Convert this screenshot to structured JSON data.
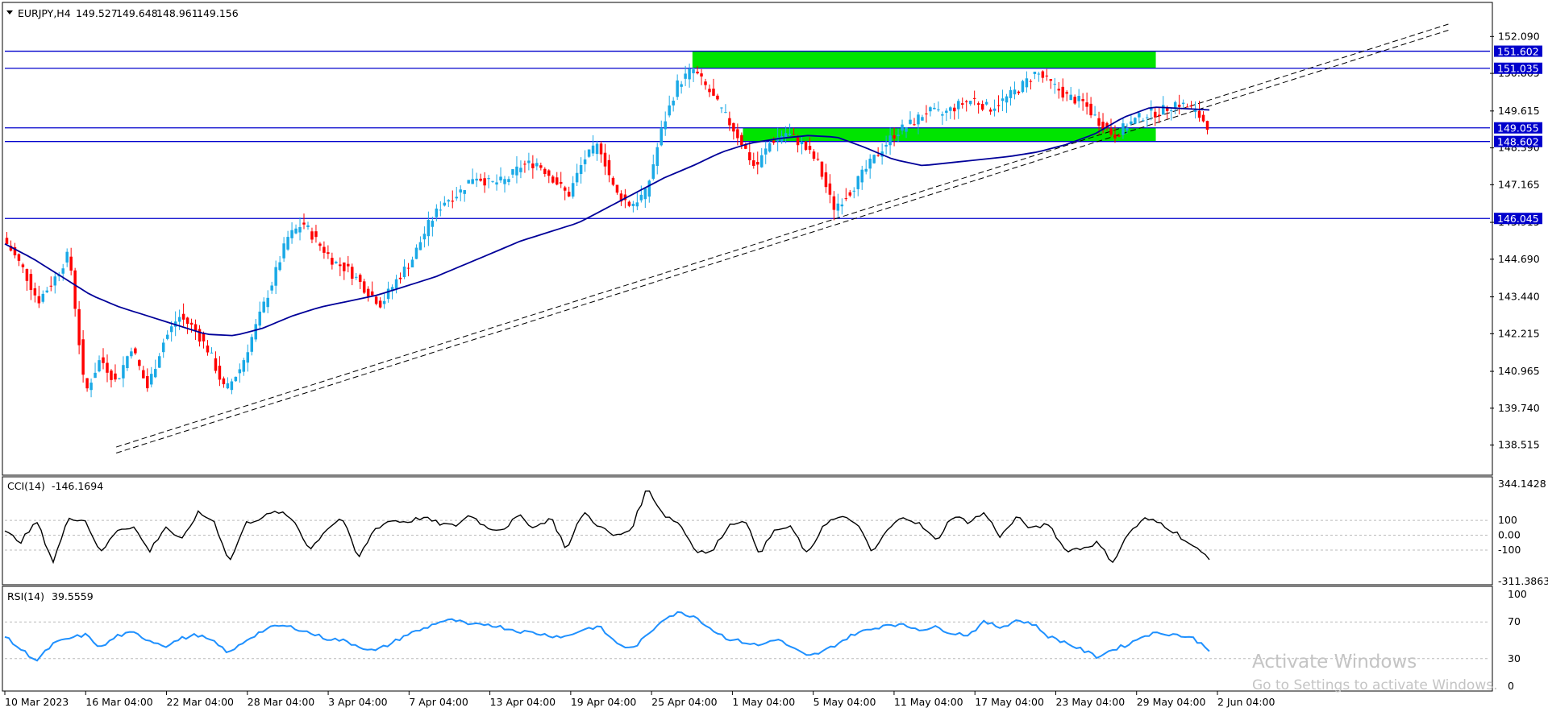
{
  "header": {
    "symbol": "EURJPY,H4",
    "open": "149.527",
    "high": "149.648",
    "low": "148.961",
    "close": "149.156"
  },
  "colors": {
    "bull": "#1aa9e6",
    "bear": "#ff0000",
    "ma": "#000099",
    "level": "#0000cc",
    "zone": "#00e400",
    "cci": "#000000",
    "rsi": "#1e90ff",
    "grid": "#bbbbbb"
  },
  "chart_data": [
    {
      "type": "candlestick",
      "title": "EURJPY,H4",
      "y_ticks": [
        "152.090",
        "150.865",
        "149.615",
        "148.390",
        "147.165",
        "145.915",
        "144.690",
        "143.440",
        "142.215",
        "140.965",
        "139.740",
        "138.515"
      ],
      "ylim": [
        138.05,
        152.5
      ],
      "x_ticks": [
        "10 Mar 2023",
        "16 Mar 04:00",
        "22 Mar 04:00",
        "28 Mar 04:00",
        "3 Apr 04:00",
        "7 Apr 04:00",
        "13 Apr 04:00",
        "19 Apr 04:00",
        "25 Apr 04:00",
        "1 May 04:00",
        "5 May 04:00",
        "11 May 04:00",
        "17 May 04:00",
        "23 May 04:00",
        "29 May 04:00",
        "2 Jun 04:00"
      ],
      "close_path": [
        145.2,
        144.4,
        143.3,
        144.0,
        144.9,
        140.2,
        141.4,
        140.6,
        141.8,
        140.4,
        141.9,
        142.8,
        142.4,
        141.6,
        140.3,
        141.1,
        142.5,
        143.9,
        145.4,
        145.9,
        145.2,
        144.6,
        144.3,
        143.7,
        143.2,
        144.0,
        144.7,
        145.8,
        146.6,
        146.9,
        147.5,
        147.2,
        147.3,
        147.8,
        147.9,
        147.4,
        146.8,
        148.0,
        148.5,
        146.9,
        146.5,
        146.9,
        149.0,
        150.5,
        151.0,
        150.3,
        149.5,
        148.7,
        147.7,
        148.6,
        148.9,
        148.5,
        147.9,
        146.4,
        146.9,
        147.6,
        148.3,
        148.9,
        149.2,
        149.6,
        149.5,
        149.8,
        150.0,
        149.7,
        150.0,
        150.4,
        150.9,
        150.5,
        150.1,
        149.9,
        149.3,
        148.8,
        149.2,
        149.5,
        149.6,
        149.9,
        149.7,
        149.16
      ],
      "moving_average_path": [
        145.2,
        144.7,
        144.1,
        143.5,
        143.1,
        142.8,
        142.5,
        142.2,
        142.15,
        142.4,
        142.8,
        143.1,
        143.3,
        143.5,
        143.8,
        144.1,
        144.5,
        144.9,
        145.3,
        145.6,
        145.9,
        146.4,
        146.9,
        147.4,
        147.8,
        148.25,
        148.55,
        148.7,
        148.8,
        148.75,
        148.4,
        148.0,
        147.8,
        147.9,
        148.0,
        148.1,
        148.25,
        148.5,
        148.85,
        149.4,
        149.75,
        149.7,
        149.65
      ],
      "levels": [
        {
          "value": 151.602,
          "label": "151.602"
        },
        {
          "value": 151.035,
          "label": "151.035"
        },
        {
          "value": 149.055,
          "label": "149.055"
        },
        {
          "value": 148.602,
          "label": "148.602"
        },
        {
          "value": 146.045,
          "label": "146.045"
        }
      ],
      "zones": [
        {
          "from_index": 0.463,
          "to_index": 0.775,
          "low": 151.035,
          "high": 151.602
        },
        {
          "from_index": 0.497,
          "to_index": 0.775,
          "low": 148.602,
          "high": 149.055
        }
      ],
      "trendlines": [
        {
          "x0": 0.075,
          "y0": 138.25,
          "x1": 0.972,
          "y1": 152.3
        },
        {
          "x0": 0.075,
          "y0": 138.45,
          "x1": 0.972,
          "y1": 152.5
        }
      ]
    },
    {
      "type": "line",
      "name": "CCI(14)",
      "header_label": "CCI(14)",
      "current_value": "-146.1694",
      "y_ticks": [
        "344.1428",
        "100",
        "0.00",
        "-100",
        "-311.3863"
      ],
      "ylim": [
        -311.3863,
        344.1428
      ],
      "reference_lines": [
        100,
        0,
        -100
      ],
      "path": [
        20,
        -40,
        90,
        -180,
        120,
        100,
        -120,
        40,
        60,
        -110,
        60,
        -40,
        150,
        100,
        -180,
        80,
        120,
        160,
        100,
        -100,
        40,
        120,
        -160,
        40,
        100,
        90,
        120,
        80,
        60,
        140,
        50,
        40,
        130,
        50,
        120,
        -100,
        160,
        60,
        -10,
        40,
        320,
        140,
        80,
        -100,
        -120,
        60,
        110,
        -120,
        40,
        50,
        -140,
        80,
        120,
        90,
        -120,
        40,
        130,
        70,
        -40,
        130,
        90,
        150,
        -10,
        120,
        40,
        80,
        -100,
        -90,
        -50,
        -180,
        20,
        110,
        80,
        10,
        -80,
        -150
      ]
    },
    {
      "type": "line",
      "name": "RSI(14)",
      "header_label": "RSI(14)",
      "current_value": "39.5559",
      "y_ticks": [
        "100",
        "70",
        "30",
        "0"
      ],
      "ylim": [
        0,
        100
      ],
      "reference_lines": [
        70,
        30
      ],
      "path": [
        54,
        40,
        28,
        46,
        52,
        56,
        42,
        55,
        58,
        50,
        44,
        52,
        56,
        48,
        36,
        50,
        60,
        66,
        64,
        58,
        52,
        50,
        44,
        38,
        46,
        56,
        62,
        70,
        72,
        66,
        68,
        64,
        60,
        58,
        55,
        54,
        62,
        65,
        48,
        40,
        55,
        74,
        80,
        76,
        62,
        52,
        48,
        44,
        52,
        42,
        32,
        38,
        48,
        58,
        62,
        68,
        66,
        62,
        64,
        58,
        56,
        70,
        64,
        72,
        68,
        54,
        48,
        40,
        32,
        40,
        46,
        56,
        58,
        56,
        52,
        40
      ]
    }
  ],
  "watermark": {
    "line1": "Activate Windows",
    "line2": "Go to Settings to activate Windows."
  }
}
